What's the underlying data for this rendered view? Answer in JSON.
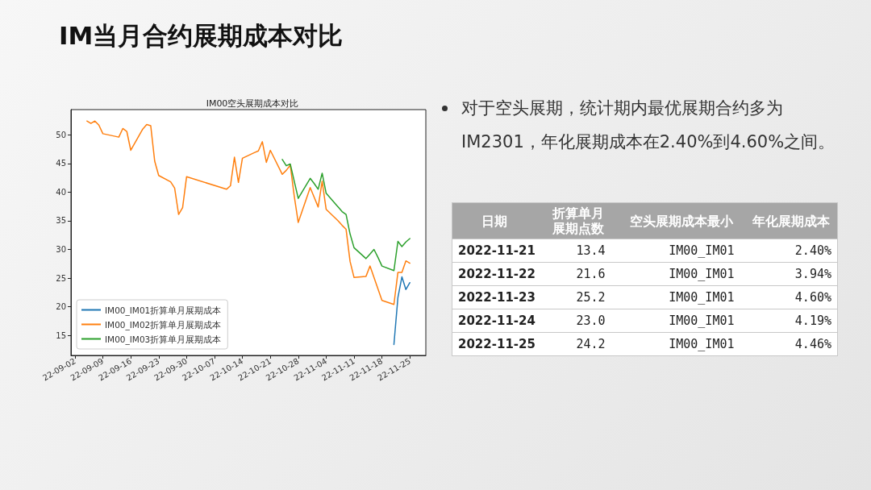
{
  "chart_data": [
    {
      "type": "other",
      "title": "IM当月合约展期成本对比"
    },
    {
      "type": "line",
      "title": "IM00空头展期成本对比",
      "xlim": [
        "2022-09-01",
        "2022-11-29"
      ],
      "xticks": [
        {
          "value": "2022-09-02",
          "label": "22-09-02"
        },
        {
          "value": "2022-09-09",
          "label": "22-09-09"
        },
        {
          "value": "2022-09-16",
          "label": "22-09-16"
        },
        {
          "value": "2022-09-23",
          "label": "22-09-23"
        },
        {
          "value": "2022-09-30",
          "label": "22-09-30"
        },
        {
          "value": "2022-10-07",
          "label": "22-10-07"
        },
        {
          "value": "2022-10-14",
          "label": "22-10-14"
        },
        {
          "value": "2022-10-21",
          "label": "22-10-21"
        },
        {
          "value": "2022-10-28",
          "label": "22-10-28"
        },
        {
          "value": "2022-11-04",
          "label": "22-11-04"
        },
        {
          "value": "2022-11-11",
          "label": "22-11-11"
        },
        {
          "value": "2022-11-18",
          "label": "22-11-18"
        },
        {
          "value": "2022-11-25",
          "label": "22-11-25"
        }
      ],
      "ylim": [
        11.5,
        54.4
      ],
      "yticks": [
        15,
        20,
        25,
        30,
        35,
        40,
        45,
        50
      ],
      "legend": "bottom left",
      "series": [
        {
          "name": "IM00_IM01折算单月展期成本",
          "color": "#1f77b4",
          "x": [
            "2022-11-21",
            "2022-11-22",
            "2022-11-23",
            "2022-11-24",
            "2022-11-25"
          ],
          "values": [
            13.4,
            21.6,
            25.2,
            23.0,
            24.2
          ]
        },
        {
          "name": "IM00_IM02折算单月展期成本",
          "color": "#ff7f0e",
          "x": [
            "2022-09-05",
            "2022-09-06",
            "2022-09-07",
            "2022-09-08",
            "2022-09-09",
            "2022-09-13",
            "2022-09-14",
            "2022-09-15",
            "2022-09-16",
            "2022-09-19",
            "2022-09-20",
            "2022-09-21",
            "2022-09-22",
            "2022-09-23",
            "2022-09-26",
            "2022-09-27",
            "2022-09-28",
            "2022-09-29",
            "2022-09-30",
            "2022-10-10",
            "2022-10-11",
            "2022-10-12",
            "2022-10-13",
            "2022-10-14",
            "2022-10-17",
            "2022-10-18",
            "2022-10-19",
            "2022-10-20",
            "2022-10-21",
            "2022-10-24",
            "2022-10-25",
            "2022-10-26",
            "2022-10-27",
            "2022-10-28",
            "2022-10-31",
            "2022-11-01",
            "2022-11-02",
            "2022-11-03",
            "2022-11-04",
            "2022-11-07",
            "2022-11-08",
            "2022-11-09",
            "2022-11-10",
            "2022-11-11",
            "2022-11-14",
            "2022-11-15",
            "2022-11-16",
            "2022-11-17",
            "2022-11-18",
            "2022-11-21",
            "2022-11-22",
            "2022-11-23",
            "2022-11-24",
            "2022-11-25"
          ],
          "values": [
            52.4,
            52.0,
            52.4,
            51.7,
            50.2,
            49.6,
            51.1,
            50.6,
            47.3,
            51.0,
            51.8,
            51.6,
            45.4,
            42.9,
            41.8,
            40.7,
            36.1,
            37.3,
            42.7,
            40.5,
            41.1,
            46.1,
            41.7,
            45.9,
            46.9,
            47.2,
            48.8,
            45.2,
            47.3,
            43.1,
            43.8,
            44.7,
            39.3,
            34.7,
            40.8,
            39.1,
            37.4,
            41.9,
            37.0,
            35.0,
            34.2,
            33.5,
            27.9,
            25.1,
            25.3,
            27.1,
            25.1,
            23.1,
            21.1,
            20.4,
            26.0,
            26.0,
            28.0,
            27.6
          ]
        },
        {
          "name": "IM00_IM03折算单月展期成本",
          "color": "#2ca02c",
          "x": [
            "2022-10-24",
            "2022-10-25",
            "2022-10-26",
            "2022-10-27",
            "2022-10-28",
            "2022-10-31",
            "2022-11-01",
            "2022-11-02",
            "2022-11-03",
            "2022-11-04",
            "2022-11-07",
            "2022-11-08",
            "2022-11-09",
            "2022-11-10",
            "2022-11-11",
            "2022-11-14",
            "2022-11-15",
            "2022-11-16",
            "2022-11-17",
            "2022-11-18",
            "2022-11-21",
            "2022-11-22",
            "2022-11-23",
            "2022-11-24",
            "2022-11-25"
          ],
          "values": [
            45.7,
            44.6,
            44.9,
            41.9,
            38.9,
            42.4,
            41.5,
            40.5,
            43.3,
            39.8,
            37.4,
            36.6,
            36.1,
            32.7,
            30.3,
            28.4,
            29.2,
            30.0,
            28.6,
            27.1,
            26.3,
            31.4,
            30.5,
            31.3,
            31.9
          ]
        }
      ]
    },
    {
      "type": "other",
      "annotations": [
        "对于空头展期，统计期内最优展期合约多为IM2301，年化展期成本在2.40%到4.60%之间。"
      ],
      "categories": [
        "日期",
        "折算单月展期点数",
        "空头展期成本最小",
        "年化展期成本"
      ],
      "cell_labels": [
        [
          "2022-11-21",
          "13.4",
          "IM00_IM01",
          "2.40%"
        ],
        [
          "2022-11-22",
          "21.6",
          "IM00_IM01",
          "3.94%"
        ],
        [
          "2022-11-23",
          "25.2",
          "IM00_IM01",
          "4.60%"
        ],
        [
          "2022-11-24",
          "23.0",
          "IM00_IM01",
          "4.19%"
        ],
        [
          "2022-11-25",
          "24.2",
          "IM00_IM01",
          "4.46%"
        ]
      ]
    }
  ]
}
